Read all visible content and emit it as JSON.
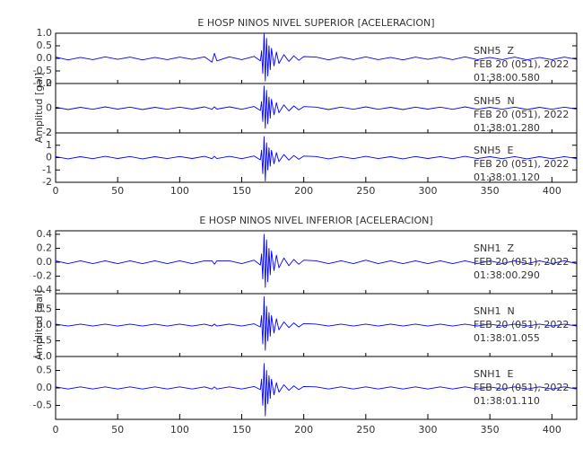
{
  "chart_data": [
    {
      "type": "line",
      "title": "E HOSP NINOS NIVEL SUPERIOR [ACELERACION]",
      "y_label": "Amplitud [gal]",
      "xlim": [
        0,
        420
      ],
      "xticks": [
        0,
        50,
        100,
        150,
        200,
        250,
        300,
        350,
        400
      ],
      "x": [
        0,
        10,
        20,
        30,
        40,
        50,
        60,
        70,
        80,
        90,
        100,
        110,
        120,
        126,
        128,
        130,
        140,
        150,
        160,
        165,
        166,
        167,
        168,
        169,
        170,
        171,
        172,
        173,
        174,
        176,
        178,
        180,
        184,
        188,
        192,
        196,
        200,
        210,
        220,
        230,
        240,
        250,
        260,
        270,
        280,
        290,
        300,
        310,
        320,
        330,
        340,
        350,
        360,
        370,
        380,
        390,
        400,
        410,
        420
      ],
      "panels": [
        {
          "station": "SNH5  Z",
          "date": "FEB 20 (051), 2022",
          "time": "01:38:00.580",
          "color": "#0000ff",
          "ylim": [
            -1,
            1
          ],
          "yticks": [
            {
              "value": -1,
              "label": "-1.0"
            },
            -0.5,
            {
              "value": 0,
              "label": "0.0"
            },
            0.5,
            {
              "value": 1,
              "label": "1.0"
            }
          ],
          "values": [
            0.05,
            -0.06,
            0.04,
            -0.05,
            0.06,
            -0.04,
            0.05,
            -0.06,
            0.04,
            -0.05,
            0.05,
            -0.04,
            0.06,
            -0.15,
            0.2,
            -0.1,
            0.06,
            -0.05,
            0.08,
            -0.1,
            0.3,
            -0.6,
            1.0,
            -0.9,
            0.8,
            -0.7,
            0.5,
            -0.45,
            0.4,
            -0.3,
            0.25,
            -0.2,
            0.15,
            -0.12,
            0.1,
            -0.08,
            0.07,
            0.05,
            -0.06,
            0.05,
            -0.05,
            0.06,
            -0.05,
            0.04,
            -0.06,
            0.05,
            -0.04,
            0.05,
            -0.05,
            0.06,
            -0.05,
            0.04,
            -0.05,
            0.05,
            -0.06,
            0.04,
            -0.05,
            0.05,
            -0.04
          ]
        },
        {
          "station": "SNH5  N",
          "date": "FEB 20 (051), 2022",
          "time": "01:38:01.280",
          "color": "#0000ff",
          "ylim": [
            -2,
            2
          ],
          "yticks": [
            -2,
            0,
            2
          ],
          "values": [
            0.09,
            -0.11,
            0.07,
            -0.09,
            0.11,
            -0.07,
            0.09,
            -0.11,
            0.07,
            -0.09,
            0.09,
            -0.07,
            0.11,
            -0.09,
            0.11,
            -0.07,
            0.11,
            -0.09,
            0.14,
            -0.18,
            0.54,
            -1.08,
            1.8,
            -1.62,
            1.44,
            -1.26,
            0.9,
            -0.81,
            0.72,
            -0.54,
            0.45,
            -0.36,
            0.27,
            -0.22,
            0.18,
            -0.14,
            0.13,
            0.09,
            -0.11,
            0.09,
            -0.09,
            0.11,
            -0.09,
            0.07,
            -0.11,
            0.09,
            -0.07,
            0.09,
            -0.09,
            0.11,
            -0.09,
            0.07,
            -0.09,
            0.09,
            -0.11,
            0.07,
            -0.09,
            0.09,
            -0.07
          ]
        },
        {
          "station": "SNH5  E",
          "date": "FEB 20 (051), 2022",
          "time": "01:38:01.120",
          "color": "#0000ff",
          "ylim": [
            -2,
            2
          ],
          "yticks": [
            -2,
            -1,
            0,
            1,
            2
          ],
          "values": [
            0.08,
            -0.1,
            0.07,
            -0.09,
            0.1,
            -0.07,
            0.09,
            -0.1,
            0.07,
            -0.08,
            0.09,
            -0.07,
            0.1,
            -0.09,
            0.1,
            -0.08,
            0.1,
            -0.09,
            0.13,
            -0.18,
            0.6,
            -1.3,
            1.7,
            -1.9,
            1.2,
            -1.0,
            0.8,
            -0.7,
            0.6,
            -0.5,
            0.4,
            -0.33,
            0.25,
            -0.2,
            0.17,
            -0.14,
            0.12,
            0.09,
            -0.1,
            0.08,
            -0.09,
            0.1,
            -0.08,
            0.07,
            -0.1,
            0.09,
            -0.07,
            0.08,
            -0.09,
            0.1,
            -0.08,
            0.07,
            -0.09,
            0.08,
            -0.1,
            0.07,
            -0.09,
            0.08,
            -0.07
          ]
        }
      ]
    },
    {
      "type": "line",
      "title": "E HOSP NINOS NIVEL INFERIOR [ACELERACION]",
      "y_label": "Amplitud [gal]",
      "xlim": [
        0,
        420
      ],
      "xticks": [
        0,
        50,
        100,
        150,
        200,
        250,
        300,
        350,
        400
      ],
      "x": [
        0,
        10,
        20,
        30,
        40,
        50,
        60,
        70,
        80,
        90,
        100,
        110,
        120,
        126,
        128,
        130,
        140,
        150,
        160,
        165,
        166,
        167,
        168,
        169,
        170,
        171,
        172,
        173,
        174,
        176,
        178,
        180,
        184,
        188,
        192,
        196,
        200,
        210,
        220,
        230,
        240,
        250,
        260,
        270,
        280,
        290,
        300,
        310,
        320,
        330,
        340,
        350,
        360,
        370,
        380,
        390,
        400,
        410,
        420
      ],
      "panels": [
        {
          "station": "SNH1  Z",
          "date": "FEB 20 (051), 2022",
          "time": "01:38:00.290",
          "color": "#0000ff",
          "ylim": [
            -0.45,
            0.45
          ],
          "yticks": [
            -0.4,
            -0.2,
            {
              "value": 0,
              "label": "0.0"
            },
            0.2,
            0.4
          ],
          "values": [
            0.02,
            -0.02,
            0.02,
            -0.02,
            0.02,
            -0.02,
            0.02,
            -0.02,
            0.02,
            -0.02,
            0.02,
            -0.02,
            0.02,
            0.02,
            -0.03,
            0.02,
            0.02,
            -0.02,
            0.03,
            -0.04,
            0.12,
            -0.24,
            0.4,
            -0.36,
            0.32,
            -0.28,
            0.2,
            -0.18,
            0.16,
            -0.12,
            0.1,
            -0.08,
            0.06,
            -0.05,
            0.04,
            -0.03,
            0.03,
            0.02,
            -0.02,
            0.02,
            -0.02,
            0.03,
            -0.02,
            0.02,
            -0.02,
            0.02,
            -0.02,
            0.02,
            -0.02,
            0.02,
            -0.02,
            0.02,
            -0.02,
            0.02,
            -0.02,
            0.02,
            -0.02,
            0.02,
            -0.02
          ]
        },
        {
          "station": "SNH1  N",
          "date": "FEB 20 (051), 2022",
          "time": "01:38:01.055",
          "color": "#0000ff",
          "ylim": [
            -1,
            1
          ],
          "yticks": [
            {
              "value": -1,
              "label": "-1.0"
            },
            -0.5,
            {
              "value": 0,
              "label": "0.0"
            },
            0.5
          ],
          "values": [
            0.03,
            -0.03,
            0.03,
            -0.03,
            0.03,
            -0.03,
            0.03,
            -0.03,
            0.03,
            -0.03,
            0.03,
            -0.03,
            0.03,
            -0.03,
            0.03,
            -0.03,
            0.03,
            -0.03,
            0.04,
            -0.06,
            0.3,
            -0.6,
            0.9,
            -0.8,
            0.6,
            -0.5,
            0.4,
            -0.35,
            0.3,
            -0.25,
            0.2,
            -0.15,
            0.1,
            -0.08,
            0.07,
            -0.06,
            0.05,
            0.03,
            -0.03,
            0.03,
            -0.03,
            0.03,
            -0.03,
            0.03,
            -0.03,
            0.03,
            -0.03,
            0.03,
            -0.03,
            0.03,
            -0.03,
            0.03,
            -0.03,
            0.03,
            -0.03,
            0.03,
            -0.03,
            0.03,
            -0.03
          ]
        },
        {
          "station": "SNH1  E",
          "date": "FEB 20 (051), 2022",
          "time": "01:38:01.110",
          "color": "#0000ff",
          "ylim": [
            -0.9,
            0.9
          ],
          "yticks": [
            -0.5,
            {
              "value": 0,
              "label": "0.0"
            },
            0.5
          ],
          "values": [
            0.03,
            -0.03,
            0.03,
            -0.03,
            0.03,
            -0.03,
            0.03,
            -0.03,
            0.03,
            -0.03,
            0.03,
            -0.03,
            0.03,
            -0.03,
            0.03,
            -0.03,
            0.03,
            -0.03,
            0.04,
            -0.05,
            0.25,
            -0.5,
            0.7,
            -0.8,
            0.5,
            -0.45,
            0.35,
            -0.3,
            0.25,
            -0.2,
            0.15,
            -0.12,
            0.09,
            -0.07,
            0.06,
            -0.05,
            0.04,
            0.03,
            -0.03,
            0.03,
            -0.03,
            0.03,
            -0.03,
            0.03,
            -0.03,
            0.03,
            -0.03,
            0.03,
            -0.03,
            0.03,
            -0.03,
            0.03,
            -0.03,
            0.03,
            -0.03,
            0.03,
            -0.03,
            0.03,
            -0.03
          ]
        }
      ]
    }
  ]
}
